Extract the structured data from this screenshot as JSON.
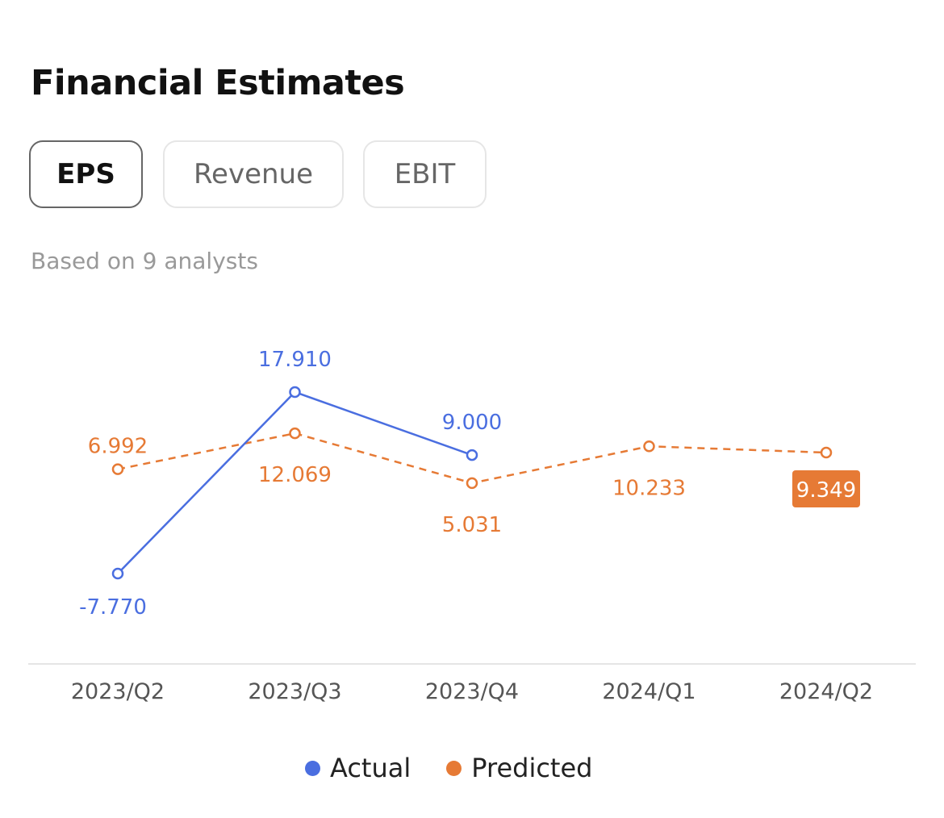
{
  "header": {
    "title": "Financial Estimates",
    "subtitle": "Based on 9 analysts"
  },
  "tabs": [
    {
      "label": "EPS",
      "active": true
    },
    {
      "label": "Revenue",
      "active": false
    },
    {
      "label": "EBIT",
      "active": false
    }
  ],
  "colors": {
    "actual": "#4a6ee0",
    "predicted": "#e67a35",
    "axis": "#e5e5e5",
    "tick_text": "#555555"
  },
  "chart_data": {
    "type": "line",
    "categories": [
      "2023/Q2",
      "2023/Q3",
      "2023/Q4",
      "2024/Q1",
      "2024/Q2"
    ],
    "series": [
      {
        "name": "Actual",
        "values": [
          -7.77,
          17.91,
          9.0,
          null,
          null
        ],
        "labels": [
          "-7.770",
          "17.910",
          "9.000",
          "",
          ""
        ],
        "line_style": "solid"
      },
      {
        "name": "Predicted",
        "values": [
          6.992,
          12.069,
          5.031,
          10.233,
          9.349
        ],
        "labels": [
          "6.992",
          "12.069",
          "5.031",
          "10.233",
          "9.349"
        ],
        "line_style": "dashed",
        "highlighted_index": 4
      }
    ],
    "ylim": [
      -7.77,
      17.91
    ],
    "grid": false,
    "legend": "bottom-center"
  }
}
